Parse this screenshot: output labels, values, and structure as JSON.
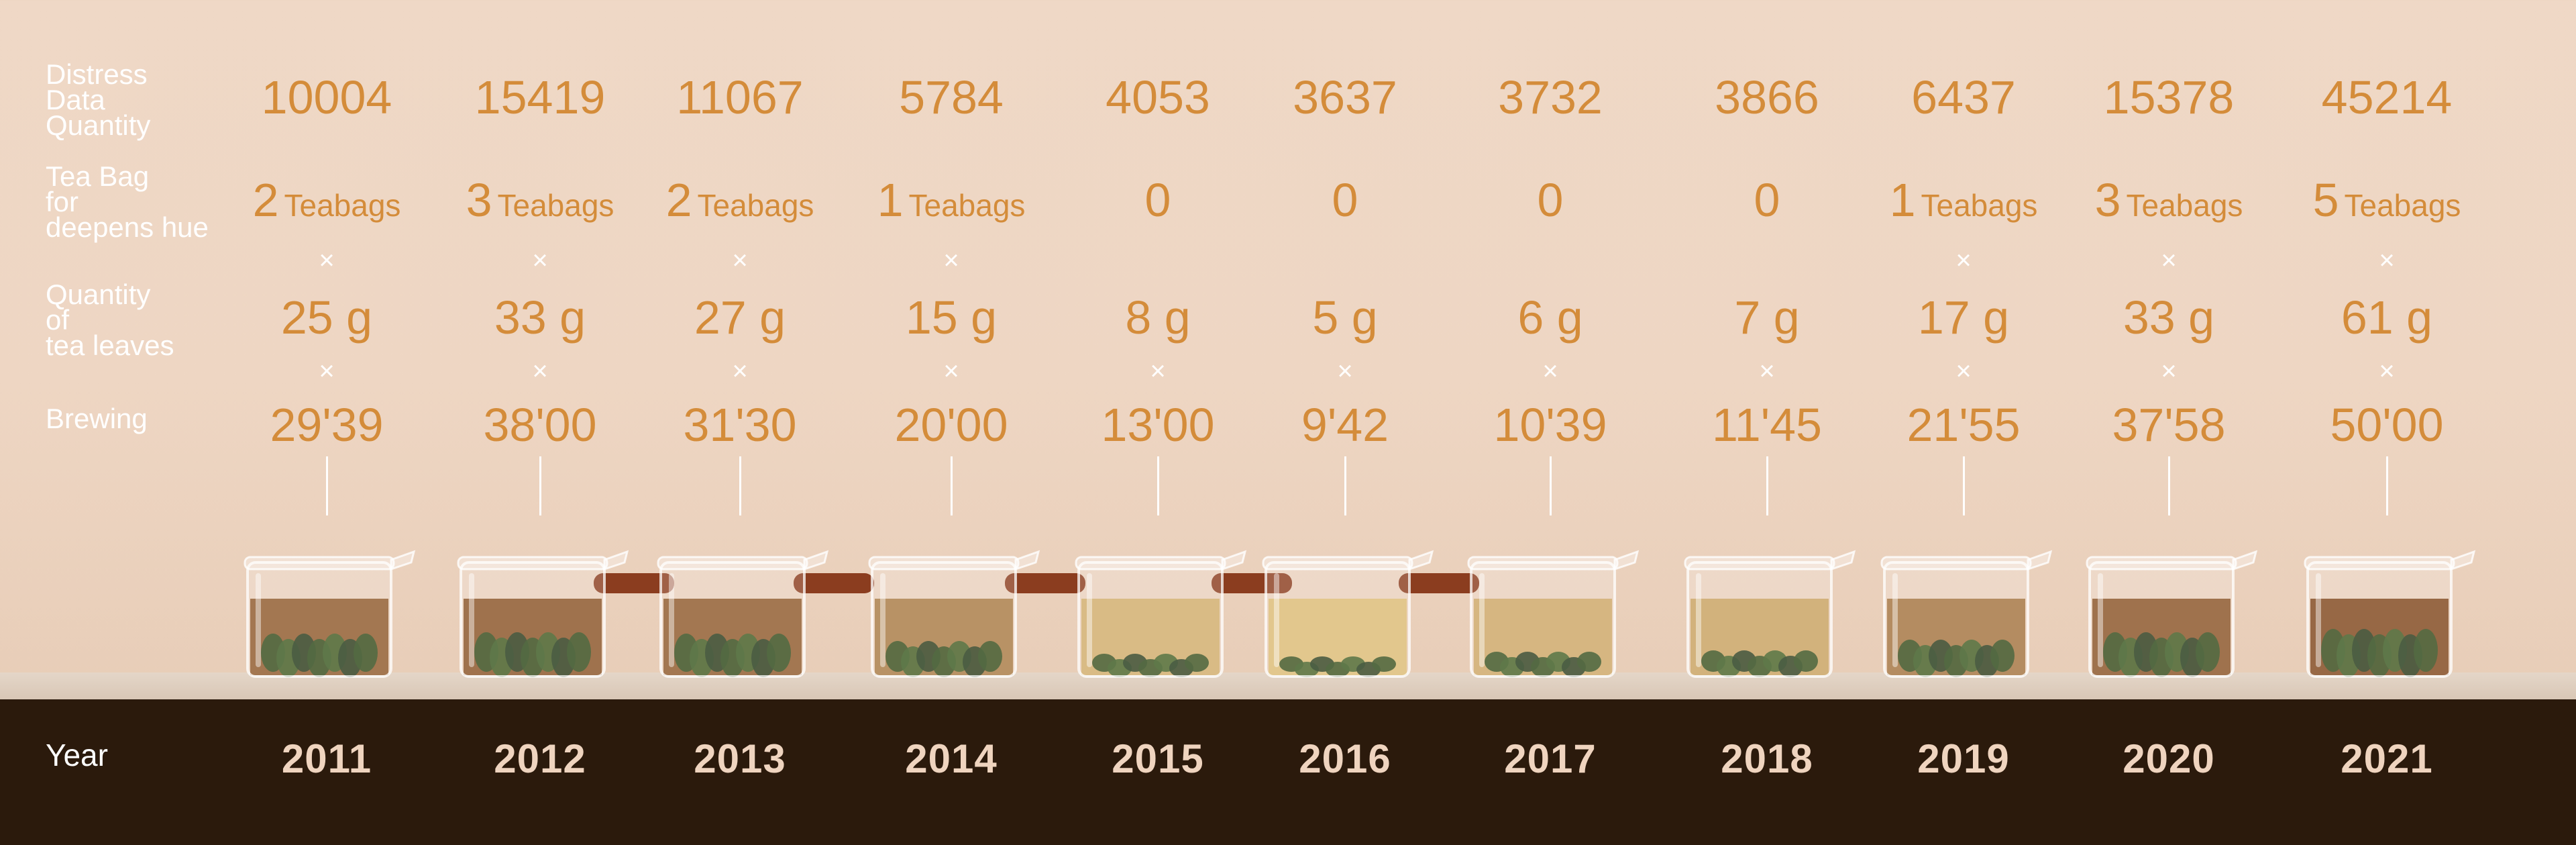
{
  "labels": {
    "distress": "Distress\nData\nQuantity",
    "teabag": "Tea Bag\nfor\ndeepens hue",
    "leaves": "Quantity\nof\ntea leaves",
    "brewing": "Brewing",
    "year": "Year"
  },
  "times_symbol": "×",
  "colors": {
    "value_text": "#d48c3a",
    "label_text": "#ffffff",
    "base_band": "#2b1a0c",
    "year_text": "#efd4bf",
    "tea_light": "#e6c67a",
    "tea_dark": "#7a3f14"
  },
  "chart_data": {
    "type": "table",
    "categories": [
      "2011",
      "2012",
      "2013",
      "2014",
      "2015",
      "2016",
      "2017",
      "2018",
      "2019",
      "2020",
      "2021"
    ],
    "series": [
      {
        "name": "Distress Data Quantity",
        "values": [
          10004,
          15419,
          11067,
          5784,
          4053,
          3637,
          3732,
          3866,
          6437,
          15378,
          45214
        ]
      },
      {
        "name": "Tea Bag for deepens hue",
        "values": [
          2,
          3,
          2,
          1,
          0,
          0,
          0,
          0,
          1,
          3,
          5
        ]
      },
      {
        "name": "Quantity of tea leaves",
        "unit": "g",
        "values": [
          25,
          33,
          27,
          15,
          8,
          5,
          6,
          7,
          17,
          33,
          61
        ]
      },
      {
        "name": "Brewing",
        "values": [
          "29'39",
          "38'00",
          "31'30",
          "20'00",
          "13'00",
          "9'42",
          "10'39",
          "11'45",
          "21'55",
          "37'58",
          "50'00"
        ]
      }
    ],
    "teabag_unit": "Teabags",
    "tea_color_level": [
      0.85,
      0.9,
      0.85,
      0.6,
      0.2,
      0.1,
      0.25,
      0.3,
      0.65,
      0.9,
      1.0
    ],
    "has_handle": [
      false,
      true,
      true,
      true,
      true,
      true,
      false,
      false,
      false,
      false,
      false
    ]
  }
}
